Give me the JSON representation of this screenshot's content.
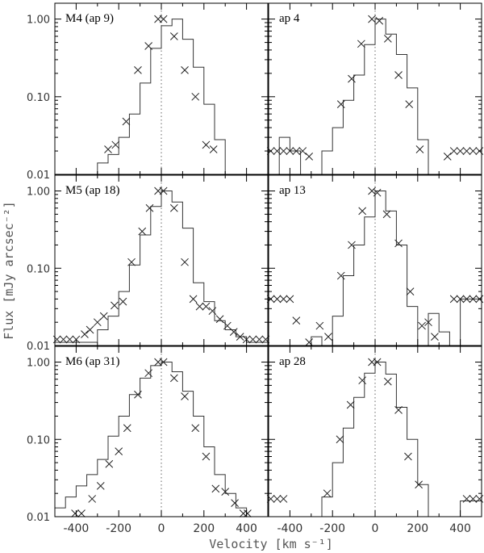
{
  "chart_data": {
    "type": "line",
    "xlabel": "Velocity [km s⁻¹]",
    "ylabel": "Flux [mJy arcsec⁻²]",
    "xlim": [
      -500,
      500
    ],
    "ylim": [
      0.01,
      1.6
    ],
    "yscale": "log",
    "xticks": [
      "-400",
      "-200",
      "0",
      "200",
      "400"
    ],
    "yticks": [
      "0.01",
      "0.10",
      "1.00"
    ],
    "step_x": [
      -500,
      -450,
      -400,
      -350,
      -300,
      -250,
      -200,
      -150,
      -100,
      -50,
      0,
      50,
      100,
      150,
      200,
      250,
      300,
      350,
      400,
      450,
      500
    ],
    "panels": [
      {
        "title": "M4 (ap 9)",
        "step_y": [
          0.0,
          0.0,
          0.0,
          0.0,
          0.014,
          0.018,
          0.03,
          0.06,
          0.15,
          0.42,
          0.82,
          1.0,
          0.55,
          0.24,
          0.08,
          0.028,
          0.0,
          0.0,
          0.0,
          0.0
        ],
        "marker_x": [
          -250,
          -215,
          -165,
          -110,
          -60,
          -15,
          10,
          60,
          110,
          160,
          210,
          245
        ],
        "marker_y": [
          0.021,
          0.024,
          0.048,
          0.22,
          0.45,
          1.0,
          1.0,
          0.6,
          0.22,
          0.1,
          0.024,
          0.021
        ]
      },
      {
        "title": "ap 4",
        "step_y": [
          0.0,
          0.03,
          0.02,
          0.0,
          0.0,
          0.02,
          0.04,
          0.09,
          0.19,
          0.47,
          1.0,
          0.64,
          0.35,
          0.13,
          0.028,
          0.0,
          0.0,
          0.0,
          0.0,
          0.0
        ],
        "marker_x": [
          -490,
          -460,
          -430,
          -400,
          -370,
          -340,
          -310,
          -160,
          -110,
          -65,
          -15,
          20,
          60,
          110,
          160,
          210,
          340,
          370,
          400,
          430,
          460,
          490
        ],
        "marker_y": [
          0.02,
          0.02,
          0.02,
          0.02,
          0.02,
          0.02,
          0.017,
          0.08,
          0.17,
          0.48,
          1.0,
          0.95,
          0.56,
          0.19,
          0.08,
          0.021,
          0.017,
          0.02,
          0.02,
          0.02,
          0.02,
          0.02
        ]
      },
      {
        "title": "M5 (ap 18)",
        "step_y": [
          0.011,
          0.011,
          0.011,
          0.011,
          0.016,
          0.024,
          0.05,
          0.11,
          0.27,
          0.63,
          1.0,
          0.72,
          0.33,
          0.065,
          0.037,
          0.021,
          0.016,
          0.013,
          0.011,
          0.011
        ],
        "marker_x": [
          -490,
          -460,
          -430,
          -400,
          -360,
          -335,
          -300,
          -270,
          -220,
          -180,
          -140,
          -90,
          -55,
          -15,
          10,
          60,
          110,
          150,
          180,
          210,
          240,
          275,
          310,
          340,
          370,
          400,
          430,
          460,
          490
        ],
        "marker_y": [
          0.012,
          0.012,
          0.012,
          0.012,
          0.014,
          0.016,
          0.02,
          0.024,
          0.033,
          0.037,
          0.12,
          0.3,
          0.6,
          1.0,
          1.0,
          0.6,
          0.12,
          0.04,
          0.032,
          0.032,
          0.028,
          0.022,
          0.018,
          0.015,
          0.013,
          0.012,
          0.012,
          0.012,
          0.012
        ]
      },
      {
        "title": "ap 13",
        "step_y": [
          0.0,
          0.0,
          0.0,
          0.0,
          0.013,
          0.0,
          0.024,
          0.08,
          0.2,
          0.46,
          1.0,
          0.55,
          0.2,
          0.032,
          0.0,
          0.026,
          0.015,
          0.0,
          0.04,
          0.04
        ],
        "marker_x": [
          -490,
          -460,
          -430,
          -400,
          -370,
          -310,
          -260,
          -220,
          -160,
          -110,
          -60,
          -15,
          10,
          55,
          110,
          165,
          220,
          250,
          280,
          370,
          400,
          430,
          460,
          490
        ],
        "marker_y": [
          0.04,
          0.04,
          0.04,
          0.04,
          0.021,
          0.011,
          0.018,
          0.013,
          0.08,
          0.2,
          0.55,
          1.0,
          0.95,
          0.5,
          0.21,
          0.05,
          0.018,
          0.02,
          0.013,
          0.04,
          0.04,
          0.04,
          0.04,
          0.04
        ]
      },
      {
        "title": "M6 (ap 31)",
        "step_y": [
          0.013,
          0.018,
          0.025,
          0.035,
          0.055,
          0.11,
          0.2,
          0.38,
          0.62,
          0.9,
          1.0,
          0.75,
          0.42,
          0.2,
          0.08,
          0.035,
          0.02,
          0.013,
          0.0,
          0.0
        ],
        "marker_x": [
          -405,
          -375,
          -325,
          -285,
          -245,
          -200,
          -160,
          -110,
          -60,
          -15,
          10,
          60,
          110,
          160,
          210,
          255,
          300,
          345,
          385,
          405
        ],
        "marker_y": [
          0.011,
          0.011,
          0.017,
          0.025,
          0.048,
          0.07,
          0.14,
          0.38,
          0.72,
          1.0,
          1.0,
          0.62,
          0.36,
          0.14,
          0.06,
          0.023,
          0.021,
          0.015,
          0.011,
          0.011
        ]
      },
      {
        "title": "ap 28",
        "step_y": [
          0.0,
          0.0,
          0.0,
          0.01,
          0.0,
          0.018,
          0.05,
          0.14,
          0.35,
          0.72,
          1.0,
          0.7,
          0.26,
          0.1,
          0.026,
          0.0,
          0.0,
          0.0,
          0.016,
          0.016
        ],
        "marker_x": [
          -490,
          -460,
          -430,
          -225,
          -165,
          -115,
          -60,
          -15,
          10,
          60,
          110,
          155,
          205,
          430,
          460,
          490
        ],
        "marker_y": [
          0.017,
          0.017,
          0.017,
          0.02,
          0.1,
          0.28,
          0.58,
          1.0,
          1.0,
          0.56,
          0.24,
          0.06,
          0.026,
          0.017,
          0.017,
          0.017
        ]
      }
    ]
  }
}
